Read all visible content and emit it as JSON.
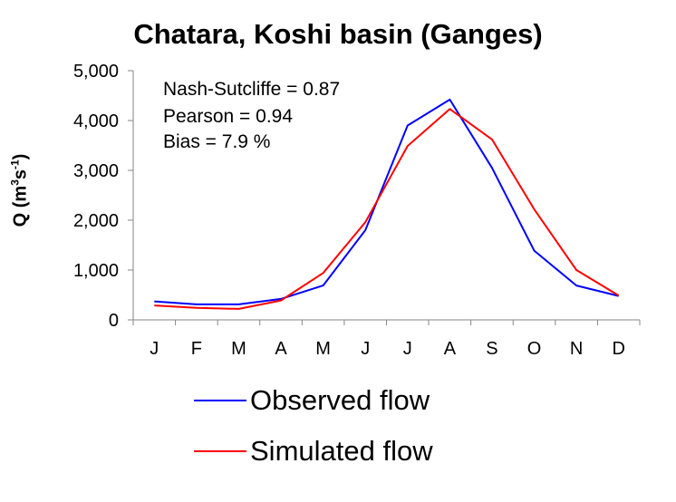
{
  "chart_data": {
    "type": "line",
    "title": "Chatara, Koshi basin (Ganges)",
    "xlabel": "",
    "ylabel_parts": [
      "Q (m",
      "3",
      "s",
      "-1",
      ")"
    ],
    "categories": [
      "J",
      "F",
      "M",
      "A",
      "M",
      "J",
      "J",
      "A",
      "S",
      "O",
      "N",
      "D"
    ],
    "ylim": [
      0,
      5000
    ],
    "yticks": [
      0,
      1000,
      2000,
      3000,
      4000,
      5000
    ],
    "ytick_labels": [
      "0",
      "1,000",
      "2,000",
      "3,000",
      "4,000",
      "5,000"
    ],
    "grid": false,
    "legend_position": "bottom",
    "series": [
      {
        "name": "Observed flow",
        "color": "#0000ff",
        "values": [
          370,
          310,
          310,
          420,
          690,
          1800,
          3900,
          4420,
          3050,
          1390,
          690,
          480
        ]
      },
      {
        "name": "Simulated flow",
        "color": "#ff0000",
        "values": [
          290,
          240,
          220,
          390,
          940,
          1960,
          3490,
          4230,
          3620,
          2220,
          1000,
          490
        ]
      }
    ],
    "annotations": [
      "Nash-Sutcliffe = 0.87",
      "Pearson = 0.94",
      "Bias = 7.9 %"
    ]
  }
}
